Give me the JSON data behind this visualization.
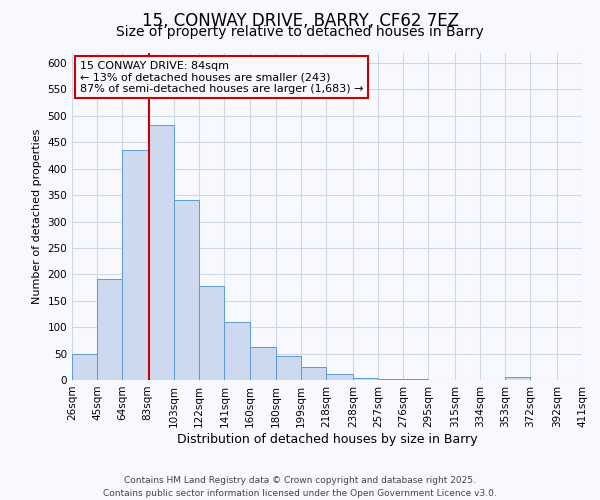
{
  "title": "15, CONWAY DRIVE, BARRY, CF62 7EZ",
  "subtitle": "Size of property relative to detached houses in Barry",
  "xlabel": "Distribution of detached houses by size in Barry",
  "ylabel": "Number of detached properties",
  "bin_labels": [
    "26sqm",
    "45sqm",
    "64sqm",
    "83sqm",
    "103sqm",
    "122sqm",
    "141sqm",
    "160sqm",
    "180sqm",
    "199sqm",
    "218sqm",
    "238sqm",
    "257sqm",
    "276sqm",
    "295sqm",
    "315sqm",
    "334sqm",
    "353sqm",
    "372sqm",
    "392sqm",
    "411sqm"
  ],
  "bin_edges": [
    26,
    45,
    64,
    83,
    103,
    122,
    141,
    160,
    180,
    199,
    218,
    238,
    257,
    276,
    295,
    315,
    334,
    353,
    372,
    392,
    411
  ],
  "bar_heights": [
    50,
    192,
    435,
    483,
    340,
    178,
    110,
    62,
    45,
    25,
    11,
    3,
    1,
    1,
    0,
    0,
    0,
    5,
    0,
    0
  ],
  "bar_face_color": "#ccd9ee",
  "bar_edge_color": "#5b9bd5",
  "property_line_x": 84,
  "annotation_title": "15 CONWAY DRIVE: 84sqm",
  "annotation_line1": "← 13% of detached houses are smaller (243)",
  "annotation_line2": "87% of semi-detached houses are larger (1,683) →",
  "annotation_box_color": "#cc0000",
  "vline_color": "#cc0000",
  "ylim": [
    0,
    620
  ],
  "yticks": [
    0,
    50,
    100,
    150,
    200,
    250,
    300,
    350,
    400,
    450,
    500,
    550,
    600
  ],
  "grid_color": "#d0d8e8",
  "footer_line1": "Contains HM Land Registry data © Crown copyright and database right 2025.",
  "footer_line2": "Contains public sector information licensed under the Open Government Licence v3.0.",
  "background_color": "#f8f9ff",
  "title_fontsize": 12,
  "subtitle_fontsize": 10,
  "footer_fontsize": 6.5,
  "tick_fontsize": 7.5,
  "ylabel_fontsize": 8,
  "xlabel_fontsize": 9,
  "annotation_fontsize": 8
}
